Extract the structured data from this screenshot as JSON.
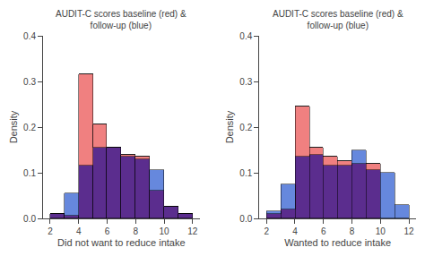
{
  "chart_data": [
    {
      "type": "bar",
      "stacked": true,
      "title": "AUDIT-C scores baseline (red) & follow-up (blue)",
      "xlabel": "Did not want to reduce intake",
      "ylabel": "Density",
      "bins": [
        2,
        3,
        4,
        5,
        6,
        7,
        8,
        9,
        10,
        11,
        12
      ],
      "series": [
        {
          "color": "#5B2D8E",
          "values": [
            0.01,
            0.005,
            0.115,
            0.155,
            0.155,
            0.135,
            0.13,
            0.06,
            0.025,
            0.01
          ]
        },
        {
          "color": "#F08080",
          "values": [
            0,
            0,
            0.2,
            0.05,
            0,
            0.005,
            0.005,
            0,
            0,
            0
          ]
        },
        {
          "color": "#6688DD",
          "values": [
            0,
            0.05,
            0,
            0,
            0,
            0,
            0,
            0.045,
            0,
            0
          ]
        }
      ],
      "xlim": [
        1.5,
        12.5
      ],
      "xticks": [
        2,
        4,
        6,
        8,
        10,
        12
      ],
      "ylim": [
        0,
        0.4
      ],
      "yticks": [
        {
          "value": 0,
          "label": "0.0"
        },
        0.1,
        0.2,
        0.3,
        0.4
      ],
      "grid": false
    },
    {
      "type": "bar",
      "stacked": true,
      "title": "AUDIT-C scores baseline (red) & follow-up (blue)",
      "xlabel": "Wanted to reduce intake",
      "ylabel": "Density",
      "bins": [
        2,
        3,
        4,
        5,
        6,
        7,
        8,
        9,
        10,
        11,
        12
      ],
      "series": [
        {
          "color": "#5B2D8E",
          "values": [
            0.01,
            0.02,
            0.135,
            0.14,
            0.115,
            0.115,
            0.12,
            0.105,
            0,
            0
          ]
        },
        {
          "color": "#F08080",
          "values": [
            0,
            0,
            0.11,
            0.015,
            0.02,
            0.01,
            0,
            0.015,
            0,
            0
          ]
        },
        {
          "color": "#6688DD",
          "values": [
            0.005,
            0.055,
            0,
            0,
            0,
            0,
            0.03,
            0,
            0.1,
            0.03
          ]
        }
      ],
      "xlim": [
        1.5,
        12.5
      ],
      "xticks": [
        2,
        4,
        6,
        8,
        10,
        12
      ],
      "ylim": [
        0,
        0.4
      ],
      "yticks": [
        {
          "value": 0,
          "label": "0.0"
        },
        0.1,
        0.2,
        0.3,
        0.4
      ],
      "grid": false
    }
  ]
}
